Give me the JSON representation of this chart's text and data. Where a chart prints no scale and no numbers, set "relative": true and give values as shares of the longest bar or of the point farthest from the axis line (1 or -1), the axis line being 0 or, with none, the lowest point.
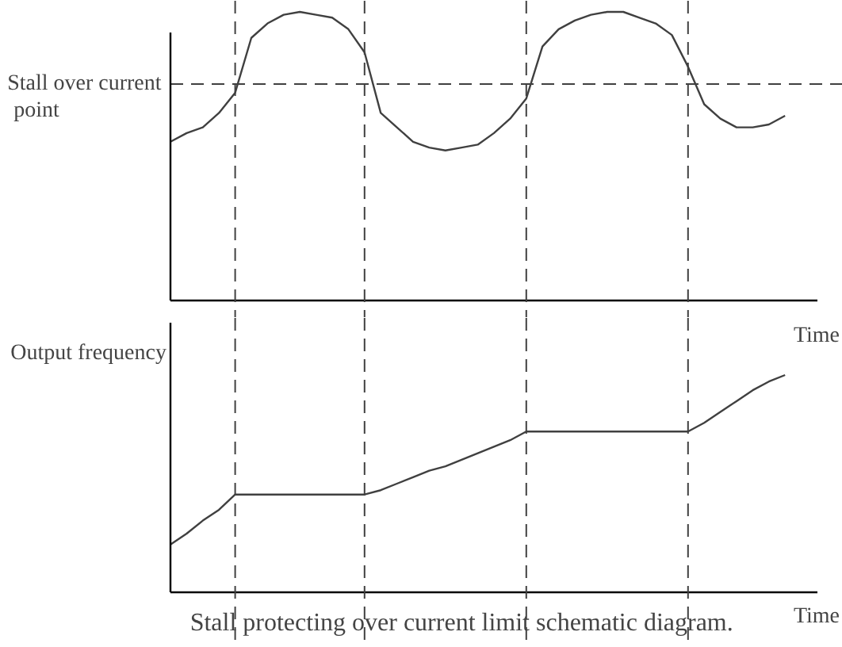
{
  "chart_data": [
    {
      "type": "line",
      "relative": true,
      "categories": [
        null,
        null,
        null,
        null,
        null,
        null,
        null,
        null,
        null,
        null,
        null,
        null,
        null,
        null,
        null,
        null,
        null,
        null,
        null,
        null,
        null,
        null,
        null,
        null,
        null,
        null,
        null,
        null,
        null,
        null,
        null,
        null,
        null,
        null,
        null,
        null,
        null,
        null,
        null
      ],
      "series": [
        {
          "color": "#404040",
          "values": [
            0.55,
            0.58,
            0.6,
            0.65,
            0.72,
            0.91,
            0.96,
            0.99,
            1.0,
            0.99,
            0.98,
            0.94,
            0.86,
            0.65,
            0.6,
            0.55,
            0.53,
            0.52,
            0.53,
            0.54,
            0.58,
            0.63,
            0.7,
            0.88,
            0.94,
            0.97,
            0.99,
            1.0,
            1.0,
            0.98,
            0.96,
            0.92,
            0.81,
            0.68,
            0.63,
            0.6,
            0.6,
            0.61,
            0.64
          ]
        }
      ],
      "tick_labels": false,
      "marker": "none",
      "line_style": "solid",
      "grid": "x",
      "ref_lines": [
        {
          "axis": "y",
          "value": 0.75,
          "label": "Stall over current point",
          "line_style": "dashed"
        }
      ]
    },
    {
      "type": "line",
      "relative": true,
      "ylabel": "Output frequency",
      "xlabel": "Time",
      "categories": [
        null,
        null,
        null,
        null,
        null,
        null,
        null,
        null,
        null,
        null,
        null,
        null,
        null,
        null,
        null,
        null,
        null,
        null,
        null,
        null,
        null,
        null,
        null,
        null,
        null,
        null,
        null,
        null,
        null,
        null,
        null,
        null,
        null,
        null,
        null,
        null,
        null,
        null,
        null
      ],
      "series": [
        {
          "color": "#404040",
          "values": [
            0.22,
            0.27,
            0.33,
            0.38,
            0.45,
            0.45,
            0.45,
            0.45,
            0.45,
            0.45,
            0.45,
            0.45,
            0.45,
            0.47,
            0.5,
            0.53,
            0.56,
            0.58,
            0.61,
            0.64,
            0.67,
            0.7,
            0.74,
            0.74,
            0.74,
            0.74,
            0.74,
            0.74,
            0.74,
            0.74,
            0.74,
            0.74,
            0.74,
            0.78,
            0.83,
            0.88,
            0.93,
            0.97,
            1.0
          ]
        }
      ],
      "tick_labels": false,
      "marker": "none",
      "line_style": "solid",
      "grid": "x",
      "annotations": [
        "Time",
        "Stall protecting over current limit schematic diagram."
      ]
    }
  ]
}
